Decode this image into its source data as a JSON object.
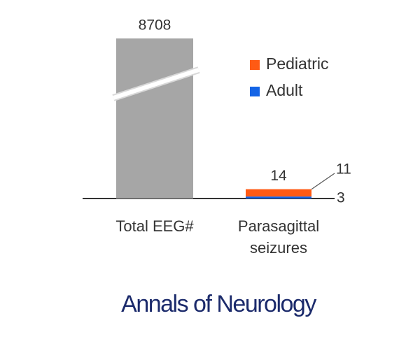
{
  "chart_data": {
    "type": "bar",
    "categories": [
      [
        "Total EEG#"
      ],
      [
        "Parasagittal",
        "seizures"
      ]
    ],
    "totals": [
      8708,
      14
    ],
    "total_color": "#a6a6a6",
    "series": [
      {
        "name": "Pediatric",
        "color": "#ff5a14",
        "values": [
          null,
          11
        ]
      },
      {
        "name": "Adult",
        "color": "#1464e6",
        "values": [
          null,
          3
        ]
      }
    ],
    "axis_break": true
  },
  "footer": "Annals of Neurology"
}
